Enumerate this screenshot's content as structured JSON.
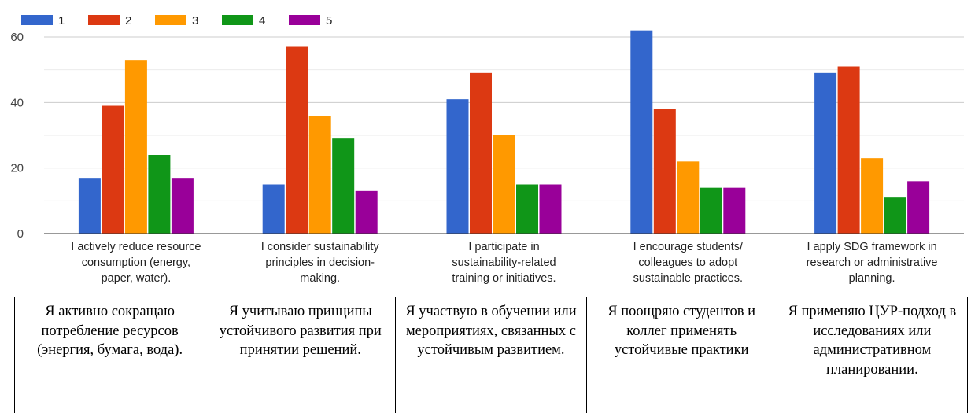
{
  "chart_data": {
    "type": "bar",
    "categories": [
      [
        "I actively reduce resource",
        "consumption (energy,",
        "paper, water)."
      ],
      [
        "I consider sustainability",
        "principles in decision-",
        "making."
      ],
      [
        "I participate in",
        "sustainability-related",
        "training or initiatives."
      ],
      [
        "I encourage students/",
        "colleagues to adopt",
        "sustainable practices."
      ],
      [
        "I apply SDG framework in",
        "research or administrative",
        "planning."
      ]
    ],
    "series": [
      {
        "name": "1",
        "color": "#3366cc",
        "values": [
          17,
          15,
          41,
          62,
          49
        ]
      },
      {
        "name": "2",
        "color": "#dc3912",
        "values": [
          39,
          57,
          49,
          38,
          51
        ]
      },
      {
        "name": "3",
        "color": "#ff9900",
        "values": [
          53,
          36,
          30,
          22,
          23
        ]
      },
      {
        "name": "4",
        "color": "#109618",
        "values": [
          24,
          29,
          15,
          14,
          11
        ]
      },
      {
        "name": "5",
        "color": "#990099",
        "values": [
          17,
          13,
          15,
          14,
          16
        ]
      }
    ],
    "ylim": [
      0,
      60
    ],
    "yticks": [
      0,
      20,
      40,
      60
    ],
    "grid": true,
    "legend_position": "top-left"
  },
  "translation_table": [
    "Я активно сокращаю потребление ресурсов (энергия, бумага, вода).",
    "Я учитываю принципы устойчивого развития при принятии решений.",
    "Я участвую в обучении или мероприятиях, связанных с устойчивым развитием.",
    "Я поощряю студентов и коллег применять устойчивые практики",
    "Я применяю ЦУР-подход в исследованиях или административном планировании."
  ]
}
